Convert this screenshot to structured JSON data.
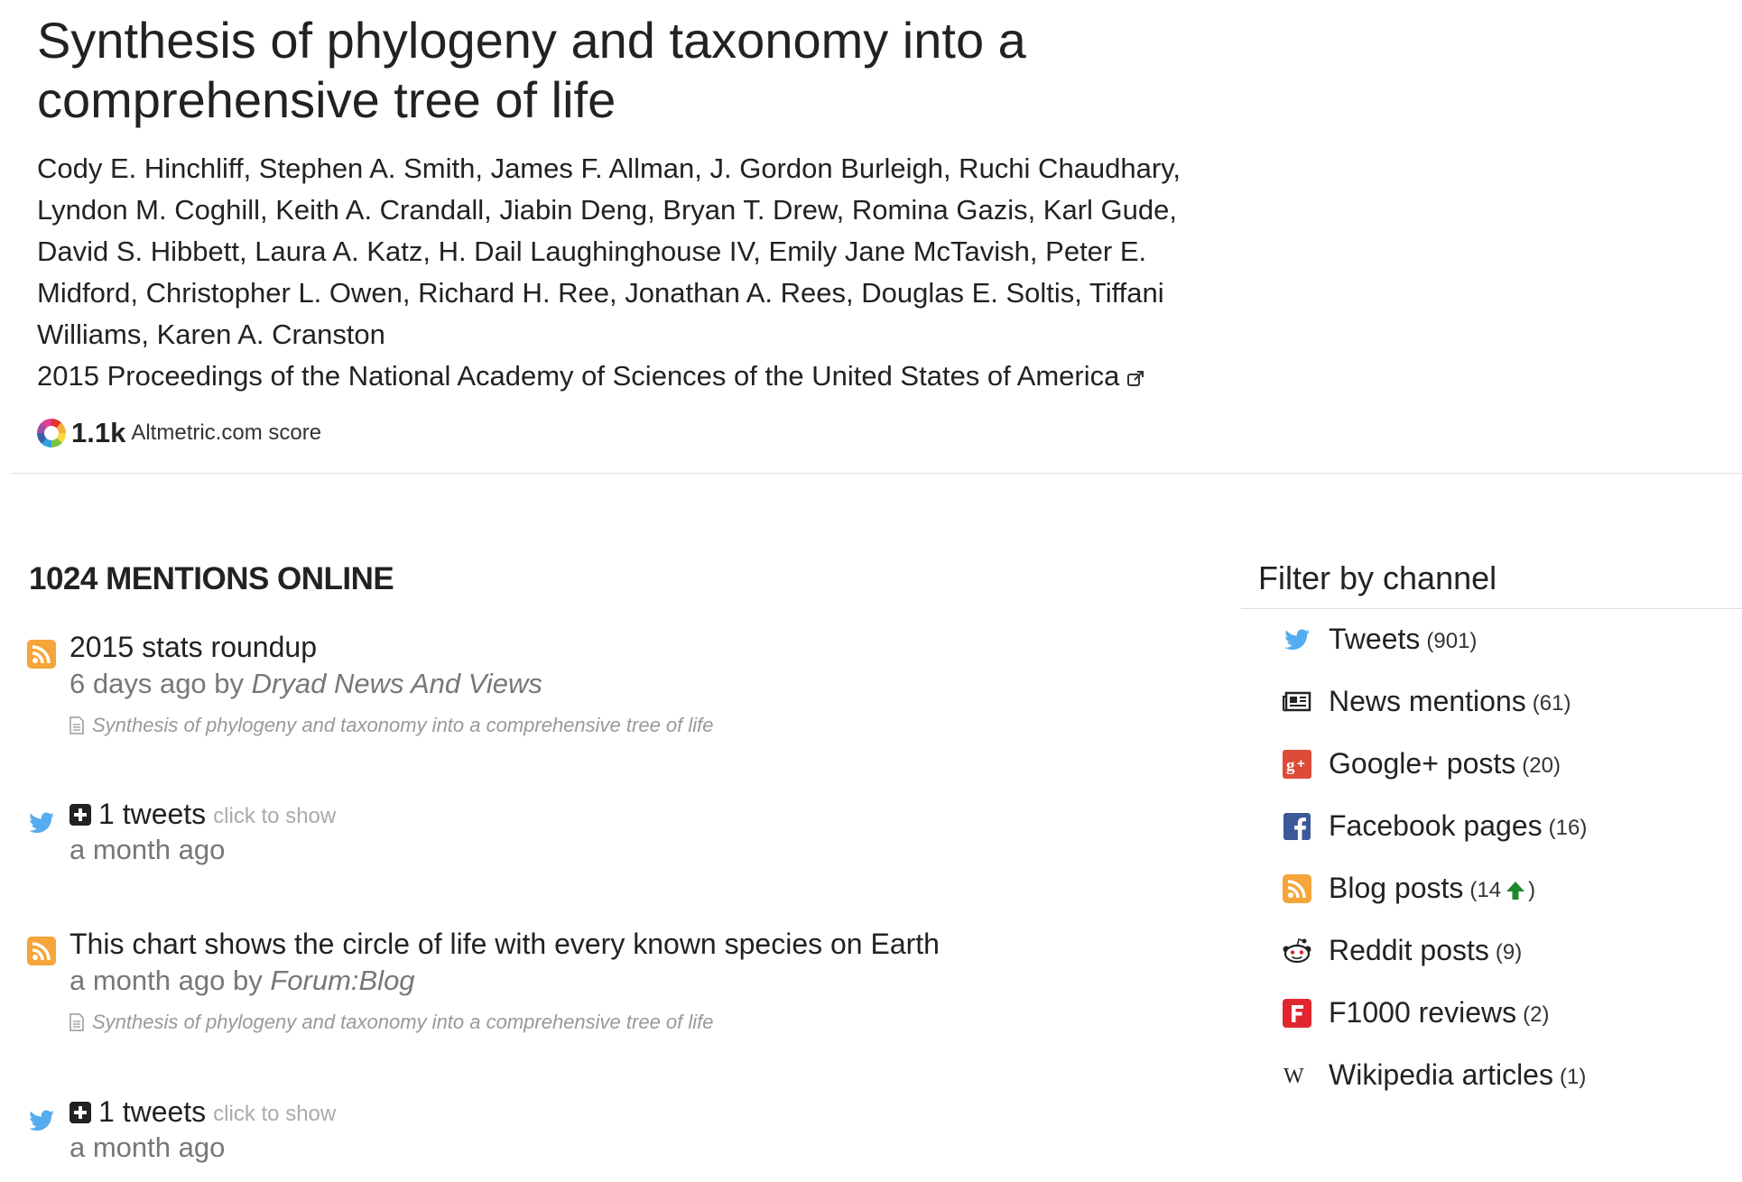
{
  "paper": {
    "title": "Synthesis of phylogeny and taxonomy into a comprehensive tree of life",
    "authors": "Cody E. Hinchliff, Stephen A. Smith, James F. Allman, J. Gordon Burleigh, Ruchi Chaudhary, Lyndon M. Coghill, Keith A. Crandall, Jiabin Deng, Bryan T. Drew, Romina Gazis, Karl Gude, David S. Hibbett, Laura A. Katz, H. Dail Laughinghouse IV, Emily Jane McTavish, Peter E. Midford, Christopher L. Owen, Richard H. Ree, Jonathan A. Rees, Douglas E. Soltis, Tiffani Williams, Karen A. Cranston",
    "journal": "2015 Proceedings of the National Academy of Sciences of the United States of America"
  },
  "score": {
    "value": "1.1k",
    "label": "Altmetric.com score"
  },
  "mentions": {
    "heading": "1024 MENTIONS ONLINE",
    "items": [
      {
        "type": "blog",
        "title": "2015 stats roundup",
        "time": "6 days ago by",
        "source": "Dryad News And Views",
        "ref": "Synthesis of phylogeny and taxonomy into a comprehensive tree of life"
      },
      {
        "type": "tweet",
        "count_text": "1 tweets",
        "click_text": "click to show",
        "time": "a month ago"
      },
      {
        "type": "blog",
        "title": "This chart shows the circle of life with every known species on Earth",
        "time": "a month ago by",
        "source": "Forum:Blog",
        "ref": "Synthesis of phylogeny and taxonomy into a comprehensive tree of life"
      },
      {
        "type": "tweet",
        "count_text": "1 tweets",
        "click_text": "click to show",
        "time": "a month ago"
      }
    ]
  },
  "filter": {
    "heading": "Filter by channel",
    "channels": [
      {
        "label": "Tweets",
        "open": "(",
        "count": "901",
        "close": ")",
        "icon": "twitter-icon"
      },
      {
        "label": "News mentions",
        "open": "(",
        "count": "61",
        "close": ")",
        "icon": "news-icon"
      },
      {
        "label": "Google+ posts",
        "open": "(",
        "count": "20",
        "close": ")",
        "icon": "google-plus-icon"
      },
      {
        "label": "Facebook pages",
        "open": "(",
        "count": "16",
        "close": ")",
        "icon": "facebook-icon"
      },
      {
        "label": "Blog posts",
        "open": "(",
        "count": "14",
        "close": ")",
        "icon": "rss-icon",
        "trend": "up"
      },
      {
        "label": "Reddit posts",
        "open": "(",
        "count": "9",
        "close": ")",
        "icon": "reddit-icon"
      },
      {
        "label": "F1000 reviews",
        "open": "(",
        "count": "2",
        "close": ")",
        "icon": "f1000-icon"
      },
      {
        "label": "Wikipedia articles",
        "open": "(",
        "count": "1",
        "close": ")",
        "icon": "wikipedia-icon"
      }
    ]
  },
  "colors": {
    "rss": "#f5a53a",
    "twitter": "#55acee",
    "google_plus": "#dd4b39",
    "facebook": "#3b5998",
    "f1000": "#e2262f",
    "trend_up": "#1b8a2a"
  }
}
